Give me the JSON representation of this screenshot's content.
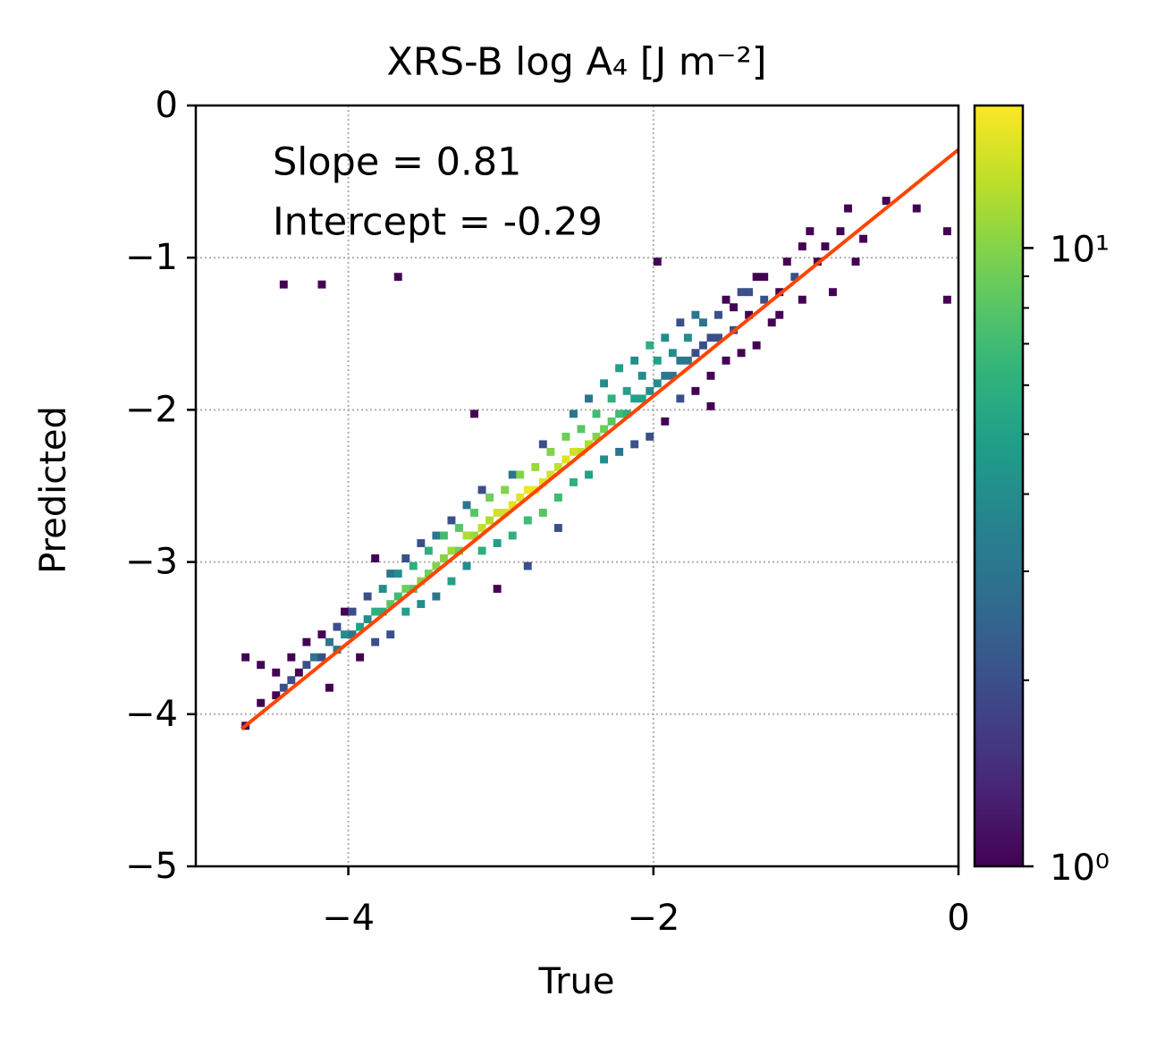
{
  "chart_data": {
    "type": "hist2d",
    "title": "XRS-B log A₄ [J m⁻²]",
    "xlabel": "True",
    "ylabel": "Predicted",
    "annotations": [
      "Slope = 0.81",
      "Intercept = -0.29"
    ],
    "xlim": [
      -5,
      0
    ],
    "ylim": [
      -5,
      0
    ],
    "xticks": [
      {
        "value": -4,
        "label": "−4"
      },
      {
        "value": -2,
        "label": "−2"
      },
      0
    ],
    "yticks": [
      0,
      {
        "value": -1,
        "label": "−1"
      },
      {
        "value": -2,
        "label": "−2"
      },
      {
        "value": -3,
        "label": "−3"
      },
      {
        "value": -4,
        "label": "−4"
      },
      {
        "value": -5,
        "label": "−5"
      }
    ],
    "grid": true,
    "colormap": "viridis",
    "color_scale": "log",
    "clim": [
      1,
      17
    ],
    "cbar_ticks": [
      {
        "value": 1,
        "label": "10⁰"
      },
      {
        "value": 10,
        "label": "10¹"
      }
    ],
    "cbar_minor_ticks": [
      2,
      3,
      4,
      5,
      6,
      7,
      8,
      9
    ],
    "bin_width": 0.05,
    "fit_line": {
      "color": "#ff4500",
      "x": [
        -4.7,
        0
      ],
      "y": [
        -4.097,
        -0.29
      ]
    },
    "cells": [
      [
        -4.7,
        -4.1,
        1
      ],
      [
        -4.7,
        -3.65,
        1
      ],
      [
        -4.6,
        -3.95,
        1
      ],
      [
        -4.6,
        -3.7,
        1
      ],
      [
        -4.5,
        -3.9,
        1
      ],
      [
        -4.5,
        -3.75,
        1
      ],
      [
        -4.45,
        -3.85,
        2
      ],
      [
        -4.4,
        -3.8,
        2
      ],
      [
        -4.4,
        -3.65,
        1
      ],
      [
        -4.35,
        -3.75,
        1
      ],
      [
        -4.3,
        -3.7,
        2
      ],
      [
        -4.3,
        -3.55,
        1
      ],
      [
        -4.25,
        -3.65,
        3
      ],
      [
        -4.2,
        -3.65,
        2
      ],
      [
        -4.2,
        -3.5,
        1
      ],
      [
        -4.15,
        -3.55,
        3
      ],
      [
        -4.15,
        -3.85,
        1
      ],
      [
        -4.1,
        -3.6,
        3
      ],
      [
        -4.1,
        -3.45,
        2
      ],
      [
        -4.05,
        -3.5,
        4
      ],
      [
        -4.05,
        -3.35,
        1
      ],
      [
        -4.0,
        -3.5,
        3
      ],
      [
        -4.0,
        -3.35,
        2
      ],
      [
        -3.95,
        -3.45,
        5
      ],
      [
        -3.95,
        -3.65,
        1
      ],
      [
        -3.9,
        -3.4,
        4
      ],
      [
        -3.9,
        -3.25,
        2
      ],
      [
        -3.85,
        -3.35,
        6
      ],
      [
        -3.85,
        -3.55,
        2
      ],
      [
        -3.85,
        -3.0,
        1
      ],
      [
        -3.8,
        -3.35,
        6
      ],
      [
        -3.8,
        -3.2,
        4
      ],
      [
        -3.75,
        -3.3,
        8
      ],
      [
        -3.75,
        -3.1,
        3
      ],
      [
        -3.75,
        -3.5,
        2
      ],
      [
        -3.7,
        -3.25,
        7
      ],
      [
        -3.7,
        -3.1,
        4
      ],
      [
        -3.65,
        -3.2,
        9
      ],
      [
        -3.65,
        -3.35,
        5
      ],
      [
        -3.65,
        -3.0,
        2
      ],
      [
        -3.6,
        -3.2,
        8
      ],
      [
        -3.6,
        -3.05,
        6
      ],
      [
        -3.55,
        -3.15,
        10
      ],
      [
        -3.55,
        -3.3,
        4
      ],
      [
        -3.55,
        -2.9,
        2
      ],
      [
        -3.5,
        -3.1,
        9
      ],
      [
        -3.5,
        -2.95,
        6
      ],
      [
        -3.45,
        -3.05,
        10
      ],
      [
        -3.45,
        -3.25,
        3
      ],
      [
        -3.45,
        -2.85,
        3
      ],
      [
        -3.4,
        -3.0,
        10
      ],
      [
        -3.4,
        -2.85,
        7
      ],
      [
        -3.35,
        -2.95,
        11
      ],
      [
        -3.35,
        -3.15,
        5
      ],
      [
        -3.35,
        -2.75,
        2
      ],
      [
        -3.3,
        -2.95,
        9
      ],
      [
        -3.3,
        -2.8,
        8
      ],
      [
        -3.25,
        -2.85,
        12
      ],
      [
        -3.25,
        -3.05,
        4
      ],
      [
        -3.25,
        -2.65,
        3
      ],
      [
        -3.2,
        -2.85,
        11
      ],
      [
        -3.2,
        -2.7,
        8
      ],
      [
        -3.15,
        -2.8,
        13
      ],
      [
        -3.15,
        -2.95,
        6
      ],
      [
        -3.15,
        -2.55,
        2
      ],
      [
        -3.1,
        -2.75,
        12
      ],
      [
        -3.1,
        -2.6,
        9
      ],
      [
        -3.05,
        -2.7,
        14
      ],
      [
        -3.05,
        -2.9,
        5
      ],
      [
        -3.05,
        -3.2,
        1
      ],
      [
        -3.0,
        -2.7,
        14
      ],
      [
        -3.0,
        -2.55,
        10
      ],
      [
        -2.95,
        -2.65,
        15
      ],
      [
        -2.95,
        -2.85,
        6
      ],
      [
        -2.95,
        -2.45,
        3
      ],
      [
        -2.9,
        -2.6,
        15
      ],
      [
        -2.9,
        -2.45,
        10
      ],
      [
        -2.85,
        -2.55,
        16
      ],
      [
        -2.85,
        -2.75,
        7
      ],
      [
        -2.85,
        -3.05,
        2
      ],
      [
        -2.8,
        -2.55,
        16
      ],
      [
        -2.8,
        -2.4,
        11
      ],
      [
        -2.75,
        -2.5,
        15
      ],
      [
        -2.75,
        -2.7,
        8
      ],
      [
        -2.75,
        -2.25,
        2
      ],
      [
        -2.7,
        -2.45,
        14
      ],
      [
        -2.7,
        -2.3,
        10
      ],
      [
        -2.65,
        -2.4,
        13
      ],
      [
        -2.65,
        -2.6,
        7
      ],
      [
        -2.65,
        -2.8,
        2
      ],
      [
        -2.6,
        -2.35,
        15
      ],
      [
        -2.6,
        -2.2,
        9
      ],
      [
        -2.55,
        -2.3,
        14
      ],
      [
        -2.55,
        -2.5,
        6
      ],
      [
        -2.55,
        -2.05,
        3
      ],
      [
        -2.5,
        -2.3,
        13
      ],
      [
        -2.5,
        -2.15,
        8
      ],
      [
        -2.45,
        -2.25,
        12
      ],
      [
        -2.45,
        -2.45,
        5
      ],
      [
        -2.45,
        -1.95,
        3
      ],
      [
        -2.4,
        -2.2,
        10
      ],
      [
        -2.4,
        -2.05,
        7
      ],
      [
        -2.35,
        -2.15,
        9
      ],
      [
        -2.35,
        -2.35,
        4
      ],
      [
        -2.35,
        -1.85,
        4
      ],
      [
        -2.3,
        -2.1,
        8
      ],
      [
        -2.3,
        -1.95,
        6
      ],
      [
        -2.25,
        -2.05,
        7
      ],
      [
        -2.25,
        -2.3,
        3
      ],
      [
        -2.25,
        -1.75,
        5
      ],
      [
        -2.2,
        -2.05,
        6
      ],
      [
        -2.2,
        -1.9,
        5
      ],
      [
        -2.15,
        -1.95,
        5
      ],
      [
        -2.15,
        -2.25,
        2
      ],
      [
        -2.15,
        -1.7,
        4
      ],
      [
        -2.1,
        -1.95,
        5
      ],
      [
        -2.1,
        -1.8,
        4
      ],
      [
        -2.05,
        -1.9,
        4
      ],
      [
        -2.05,
        -2.2,
        2
      ],
      [
        -2.05,
        -1.6,
        6
      ],
      [
        -2.0,
        -1.85,
        4
      ],
      [
        -2.0,
        -1.7,
        5
      ],
      [
        -1.95,
        -1.8,
        3
      ],
      [
        -1.95,
        -2.1,
        1
      ],
      [
        -1.95,
        -1.55,
        4
      ],
      [
        -1.9,
        -1.8,
        3
      ],
      [
        -1.9,
        -1.65,
        4
      ],
      [
        -1.85,
        -1.7,
        3
      ],
      [
        -1.85,
        -1.95,
        2
      ],
      [
        -1.85,
        -1.45,
        2
      ],
      [
        -1.8,
        -1.7,
        3
      ],
      [
        -1.8,
        -1.55,
        4
      ],
      [
        -1.75,
        -1.65,
        2
      ],
      [
        -1.75,
        -1.9,
        1
      ],
      [
        -1.75,
        -1.4,
        3
      ],
      [
        -1.7,
        -1.6,
        2
      ],
      [
        -1.7,
        -1.45,
        3
      ],
      [
        -1.65,
        -1.55,
        2
      ],
      [
        -1.65,
        -1.8,
        1
      ],
      [
        -1.6,
        -1.55,
        2
      ],
      [
        -1.6,
        -1.4,
        2
      ],
      [
        -1.55,
        -1.7,
        1
      ],
      [
        -1.55,
        -1.3,
        1
      ],
      [
        -1.5,
        -1.5,
        2
      ],
      [
        -1.5,
        -1.35,
        1
      ],
      [
        -1.45,
        -1.65,
        1
      ],
      [
        -1.45,
        -1.25,
        2
      ],
      [
        -1.4,
        -1.4,
        1
      ],
      [
        -1.4,
        -1.25,
        2
      ],
      [
        -1.35,
        -1.6,
        1
      ],
      [
        -1.35,
        -1.15,
        1
      ],
      [
        -1.3,
        -1.3,
        2
      ],
      [
        -1.3,
        -1.15,
        1
      ],
      [
        -1.25,
        -1.45,
        1
      ],
      [
        -1.2,
        -1.25,
        1
      ],
      [
        -1.2,
        -1.4,
        1
      ],
      [
        -1.15,
        -1.05,
        1
      ],
      [
        -1.1,
        -1.15,
        2
      ],
      [
        -1.05,
        -1.3,
        1
      ],
      [
        -1.05,
        -0.95,
        1
      ],
      [
        -1.0,
        -0.85,
        1
      ],
      [
        -0.95,
        -1.05,
        1
      ],
      [
        -0.9,
        -0.95,
        1
      ],
      [
        -0.85,
        -1.25,
        1
      ],
      [
        -0.8,
        -0.85,
        1
      ],
      [
        -0.75,
        -0.7,
        1
      ],
      [
        -0.7,
        -1.05,
        1
      ],
      [
        -0.65,
        -0.9,
        1
      ],
      [
        -0.5,
        -0.65,
        1
      ],
      [
        -0.3,
        -0.7,
        1
      ],
      [
        -0.1,
        -0.85,
        1
      ],
      [
        -0.1,
        -1.3,
        1
      ],
      [
        -4.45,
        -1.2,
        1
      ],
      [
        -4.2,
        -1.2,
        1
      ],
      [
        -3.7,
        -1.15,
        1
      ],
      [
        -3.2,
        -2.05,
        1
      ],
      [
        -2.0,
        -1.05,
        1
      ],
      [
        -1.65,
        -2.0,
        1
      ]
    ]
  }
}
